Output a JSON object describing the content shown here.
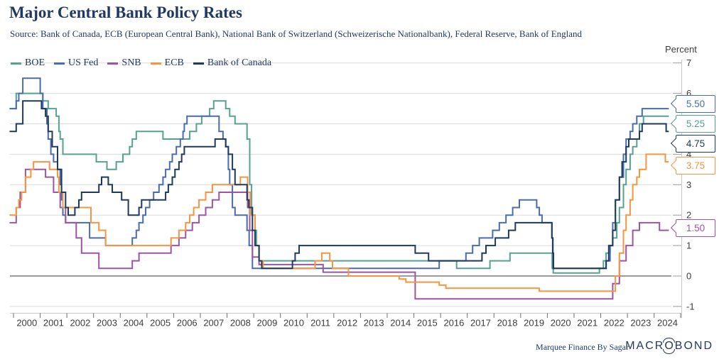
{
  "header": {
    "title": "Major Central Bank Policy Rates",
    "source": "Source: Bank of Canada, ECB (European Central Bank), National Bank of Switzerland (Schweizerische Nationalbank), Federal Reserve, Bank of England"
  },
  "axis": {
    "unit_label": "Percent"
  },
  "footer": {
    "credit": "Marquee Finance By Sagar",
    "logo_prefix": "MACR",
    "logo_o": "O",
    "logo_suffix": "BOND"
  },
  "chart_data": {
    "type": "line",
    "step": true,
    "title": "Major Central Bank Policy Rates",
    "ylabel": "Percent",
    "x_range": [
      1999.85,
      2024.55
    ],
    "ylim": [
      -1,
      7
    ],
    "grid": true,
    "legend_position": "top-left",
    "y_ticks": [
      "7",
      "6",
      "5",
      "4",
      "3",
      "2",
      "1",
      "0",
      "-1"
    ],
    "x_tick_labels": [
      "2000",
      "2001",
      "2002",
      "2003",
      "2004",
      "2005",
      "2006",
      "2007",
      "2008",
      "2009",
      "2010",
      "2011",
      "2012",
      "2013",
      "2014",
      "2015",
      "2016",
      "2017",
      "2018",
      "2019",
      "2020",
      "2021",
      "2022",
      "2023",
      "2024"
    ],
    "series": [
      {
        "name": "BOE",
        "color": "#55a28f",
        "points": [
          [
            1999.85,
            5.5
          ],
          [
            2000.1,
            6.0
          ],
          [
            2001.1,
            5.75
          ],
          [
            2001.3,
            5.5
          ],
          [
            2001.6,
            5.25
          ],
          [
            2001.7,
            4.75
          ],
          [
            2001.75,
            4.5
          ],
          [
            2001.85,
            4.0
          ],
          [
            2003.1,
            3.75
          ],
          [
            2003.5,
            3.5
          ],
          [
            2003.85,
            3.75
          ],
          [
            2004.1,
            4.0
          ],
          [
            2004.35,
            4.25
          ],
          [
            2004.45,
            4.5
          ],
          [
            2004.6,
            4.75
          ],
          [
            2005.6,
            4.5
          ],
          [
            2006.6,
            4.75
          ],
          [
            2006.85,
            5.0
          ],
          [
            2007.05,
            5.25
          ],
          [
            2007.35,
            5.5
          ],
          [
            2007.5,
            5.75
          ],
          [
            2007.95,
            5.5
          ],
          [
            2008.1,
            5.25
          ],
          [
            2008.3,
            5.0
          ],
          [
            2008.75,
            4.5
          ],
          [
            2008.85,
            3.0
          ],
          [
            2008.92,
            2.0
          ],
          [
            2009.05,
            1.5
          ],
          [
            2009.1,
            1.0
          ],
          [
            2009.2,
            0.5
          ],
          [
            2016.6,
            0.25
          ],
          [
            2017.85,
            0.5
          ],
          [
            2018.6,
            0.75
          ],
          [
            2020.18,
            0.25
          ],
          [
            2020.22,
            0.1
          ],
          [
            2021.95,
            0.25
          ],
          [
            2022.1,
            0.5
          ],
          [
            2022.2,
            0.75
          ],
          [
            2022.35,
            1.0
          ],
          [
            2022.45,
            1.25
          ],
          [
            2022.6,
            1.75
          ],
          [
            2022.7,
            2.25
          ],
          [
            2022.85,
            3.0
          ],
          [
            2022.95,
            3.5
          ],
          [
            2023.1,
            4.0
          ],
          [
            2023.2,
            4.25
          ],
          [
            2023.35,
            4.5
          ],
          [
            2023.45,
            5.0
          ],
          [
            2023.6,
            5.25
          ]
        ]
      },
      {
        "name": "US Fed",
        "color": "#4a6cae",
        "points": [
          [
            1999.85,
            5.5
          ],
          [
            2000.1,
            5.75
          ],
          [
            2000.2,
            6.0
          ],
          [
            2000.35,
            6.5
          ],
          [
            2001.0,
            6.0
          ],
          [
            2001.1,
            5.5
          ],
          [
            2001.25,
            5.0
          ],
          [
            2001.3,
            4.5
          ],
          [
            2001.4,
            4.0
          ],
          [
            2001.5,
            3.75
          ],
          [
            2001.65,
            3.5
          ],
          [
            2001.75,
            3.0
          ],
          [
            2001.8,
            2.5
          ],
          [
            2001.85,
            2.0
          ],
          [
            2001.95,
            1.75
          ],
          [
            2002.85,
            1.25
          ],
          [
            2003.45,
            1.0
          ],
          [
            2004.45,
            1.25
          ],
          [
            2004.6,
            1.5
          ],
          [
            2004.7,
            1.75
          ],
          [
            2004.85,
            2.0
          ],
          [
            2004.95,
            2.25
          ],
          [
            2005.1,
            2.5
          ],
          [
            2005.25,
            2.75
          ],
          [
            2005.45,
            3.0
          ],
          [
            2005.6,
            3.25
          ],
          [
            2005.7,
            3.5
          ],
          [
            2005.85,
            3.75
          ],
          [
            2005.95,
            4.0
          ],
          [
            2006.1,
            4.25
          ],
          [
            2006.25,
            4.5
          ],
          [
            2006.35,
            4.75
          ],
          [
            2006.4,
            5.0
          ],
          [
            2006.5,
            5.25
          ],
          [
            2007.7,
            4.75
          ],
          [
            2007.85,
            4.5
          ],
          [
            2007.95,
            4.25
          ],
          [
            2008.05,
            3.5
          ],
          [
            2008.1,
            3.0
          ],
          [
            2008.2,
            2.25
          ],
          [
            2008.3,
            2.0
          ],
          [
            2008.75,
            1.5
          ],
          [
            2008.83,
            1.0
          ],
          [
            2008.95,
            0.25
          ],
          [
            2015.95,
            0.5
          ],
          [
            2016.95,
            0.75
          ],
          [
            2017.2,
            1.0
          ],
          [
            2017.45,
            1.25
          ],
          [
            2017.95,
            1.5
          ],
          [
            2018.2,
            1.75
          ],
          [
            2018.45,
            2.0
          ],
          [
            2018.7,
            2.25
          ],
          [
            2018.95,
            2.5
          ],
          [
            2019.6,
            2.25
          ],
          [
            2019.7,
            2.0
          ],
          [
            2019.8,
            1.75
          ],
          [
            2020.17,
            1.25
          ],
          [
            2020.21,
            0.25
          ],
          [
            2022.2,
            0.5
          ],
          [
            2022.35,
            1.0
          ],
          [
            2022.45,
            1.75
          ],
          [
            2022.55,
            2.5
          ],
          [
            2022.7,
            3.25
          ],
          [
            2022.85,
            4.0
          ],
          [
            2022.95,
            4.5
          ],
          [
            2023.1,
            4.75
          ],
          [
            2023.2,
            5.0
          ],
          [
            2023.35,
            5.25
          ],
          [
            2023.55,
            5.5
          ]
        ]
      },
      {
        "name": "SNB",
        "color": "#9c55a4",
        "points": [
          [
            1999.85,
            1.75
          ],
          [
            2000.1,
            2.25
          ],
          [
            2000.25,
            2.75
          ],
          [
            2000.45,
            3.5
          ],
          [
            2001.2,
            3.25
          ],
          [
            2001.5,
            2.75
          ],
          [
            2001.75,
            2.25
          ],
          [
            2001.95,
            1.75
          ],
          [
            2002.35,
            1.25
          ],
          [
            2002.55,
            0.75
          ],
          [
            2003.2,
            0.25
          ],
          [
            2004.45,
            0.5
          ],
          [
            2004.7,
            0.75
          ],
          [
            2005.9,
            1.0
          ],
          [
            2006.2,
            1.25
          ],
          [
            2006.45,
            1.5
          ],
          [
            2006.7,
            1.75
          ],
          [
            2006.95,
            2.0
          ],
          [
            2007.2,
            2.25
          ],
          [
            2007.45,
            2.5
          ],
          [
            2007.7,
            2.75
          ],
          [
            2008.77,
            2.25
          ],
          [
            2008.85,
            1.5
          ],
          [
            2008.95,
            0.625
          ],
          [
            2009.2,
            0.375
          ],
          [
            2011.6,
            0.125
          ],
          [
            2015.05,
            -0.75
          ],
          [
            2022.45,
            -0.25
          ],
          [
            2022.7,
            0.5
          ],
          [
            2022.95,
            1.0
          ],
          [
            2023.2,
            1.5
          ],
          [
            2023.45,
            1.75
          ],
          [
            2024.2,
            1.5
          ]
        ]
      },
      {
        "name": "ECB",
        "color": "#f79440",
        "points": [
          [
            1999.85,
            2.0
          ],
          [
            2000.1,
            2.25
          ],
          [
            2000.2,
            2.5
          ],
          [
            2000.3,
            2.75
          ],
          [
            2000.45,
            3.25
          ],
          [
            2000.65,
            3.5
          ],
          [
            2000.75,
            3.75
          ],
          [
            2001.35,
            3.5
          ],
          [
            2001.65,
            3.25
          ],
          [
            2001.7,
            2.75
          ],
          [
            2001.85,
            2.25
          ],
          [
            2002.9,
            1.75
          ],
          [
            2003.2,
            1.5
          ],
          [
            2003.45,
            1.0
          ],
          [
            2005.9,
            1.25
          ],
          [
            2006.2,
            1.5
          ],
          [
            2006.45,
            1.75
          ],
          [
            2006.6,
            2.0
          ],
          [
            2006.75,
            2.25
          ],
          [
            2006.95,
            2.5
          ],
          [
            2007.2,
            2.75
          ],
          [
            2007.45,
            3.0
          ],
          [
            2008.5,
            3.25
          ],
          [
            2008.77,
            2.75
          ],
          [
            2008.87,
            2.0
          ],
          [
            2009.05,
            1.0
          ],
          [
            2009.2,
            0.5
          ],
          [
            2009.35,
            0.25
          ],
          [
            2011.3,
            0.5
          ],
          [
            2011.55,
            0.75
          ],
          [
            2011.85,
            0.5
          ],
          [
            2011.95,
            0.25
          ],
          [
            2012.55,
            0.0
          ],
          [
            2014.45,
            -0.1
          ],
          [
            2014.7,
            -0.2
          ],
          [
            2015.95,
            -0.3
          ],
          [
            2016.2,
            -0.4
          ],
          [
            2019.7,
            -0.5
          ],
          [
            2022.55,
            0.0
          ],
          [
            2022.7,
            0.75
          ],
          [
            2022.85,
            1.5
          ],
          [
            2022.95,
            2.0
          ],
          [
            2023.1,
            2.5
          ],
          [
            2023.2,
            3.0
          ],
          [
            2023.35,
            3.25
          ],
          [
            2023.45,
            3.5
          ],
          [
            2023.7,
            4.0
          ],
          [
            2024.42,
            3.75
          ]
        ]
      },
      {
        "name": "Bank of Canada",
        "color": "#1e3a5f",
        "points": [
          [
            1999.85,
            4.75
          ],
          [
            2000.1,
            5.0
          ],
          [
            2000.35,
            5.75
          ],
          [
            2001.05,
            5.5
          ],
          [
            2001.2,
            5.25
          ],
          [
            2001.3,
            4.75
          ],
          [
            2001.45,
            4.25
          ],
          [
            2001.65,
            3.5
          ],
          [
            2001.8,
            2.75
          ],
          [
            2001.95,
            2.25
          ],
          [
            2002.05,
            2.0
          ],
          [
            2002.3,
            2.25
          ],
          [
            2002.45,
            2.5
          ],
          [
            2002.55,
            2.75
          ],
          [
            2003.2,
            3.0
          ],
          [
            2003.3,
            3.25
          ],
          [
            2003.55,
            3.0
          ],
          [
            2003.7,
            2.75
          ],
          [
            2004.05,
            2.5
          ],
          [
            2004.3,
            2.0
          ],
          [
            2004.7,
            2.25
          ],
          [
            2004.8,
            2.5
          ],
          [
            2005.7,
            2.75
          ],
          [
            2005.8,
            3.0
          ],
          [
            2005.95,
            3.25
          ],
          [
            2006.05,
            3.5
          ],
          [
            2006.2,
            3.75
          ],
          [
            2006.3,
            4.0
          ],
          [
            2006.4,
            4.25
          ],
          [
            2007.55,
            4.5
          ],
          [
            2007.95,
            4.25
          ],
          [
            2008.05,
            4.0
          ],
          [
            2008.2,
            3.5
          ],
          [
            2008.3,
            3.0
          ],
          [
            2008.75,
            2.5
          ],
          [
            2008.82,
            2.25
          ],
          [
            2008.95,
            1.5
          ],
          [
            2009.05,
            1.0
          ],
          [
            2009.2,
            0.5
          ],
          [
            2009.3,
            0.25
          ],
          [
            2010.45,
            0.5
          ],
          [
            2010.55,
            0.75
          ],
          [
            2010.7,
            1.0
          ],
          [
            2015.05,
            0.75
          ],
          [
            2015.55,
            0.5
          ],
          [
            2017.55,
            0.75
          ],
          [
            2017.7,
            1.0
          ],
          [
            2018.05,
            1.25
          ],
          [
            2018.55,
            1.5
          ],
          [
            2018.8,
            1.75
          ],
          [
            2020.17,
            1.25
          ],
          [
            2020.2,
            0.75
          ],
          [
            2020.23,
            0.25
          ],
          [
            2022.2,
            0.5
          ],
          [
            2022.3,
            1.0
          ],
          [
            2022.45,
            1.5
          ],
          [
            2022.55,
            2.5
          ],
          [
            2022.7,
            3.25
          ],
          [
            2022.8,
            3.75
          ],
          [
            2022.95,
            4.25
          ],
          [
            2023.05,
            4.5
          ],
          [
            2023.45,
            4.75
          ],
          [
            2023.55,
            5.0
          ],
          [
            2024.45,
            4.75
          ]
        ]
      }
    ],
    "end_labels": [
      {
        "value": "5.50",
        "series": "US Fed",
        "color": "#4a6cae"
      },
      {
        "value": "5.25",
        "series": "BOE",
        "color": "#55a28f"
      },
      {
        "value": "4.75",
        "series": "Bank of Canada",
        "color": "#1e3a5f"
      },
      {
        "value": "3.75",
        "series": "ECB",
        "color": "#f79440"
      },
      {
        "value": "1.50",
        "series": "SNB",
        "color": "#9c55a4"
      }
    ]
  }
}
